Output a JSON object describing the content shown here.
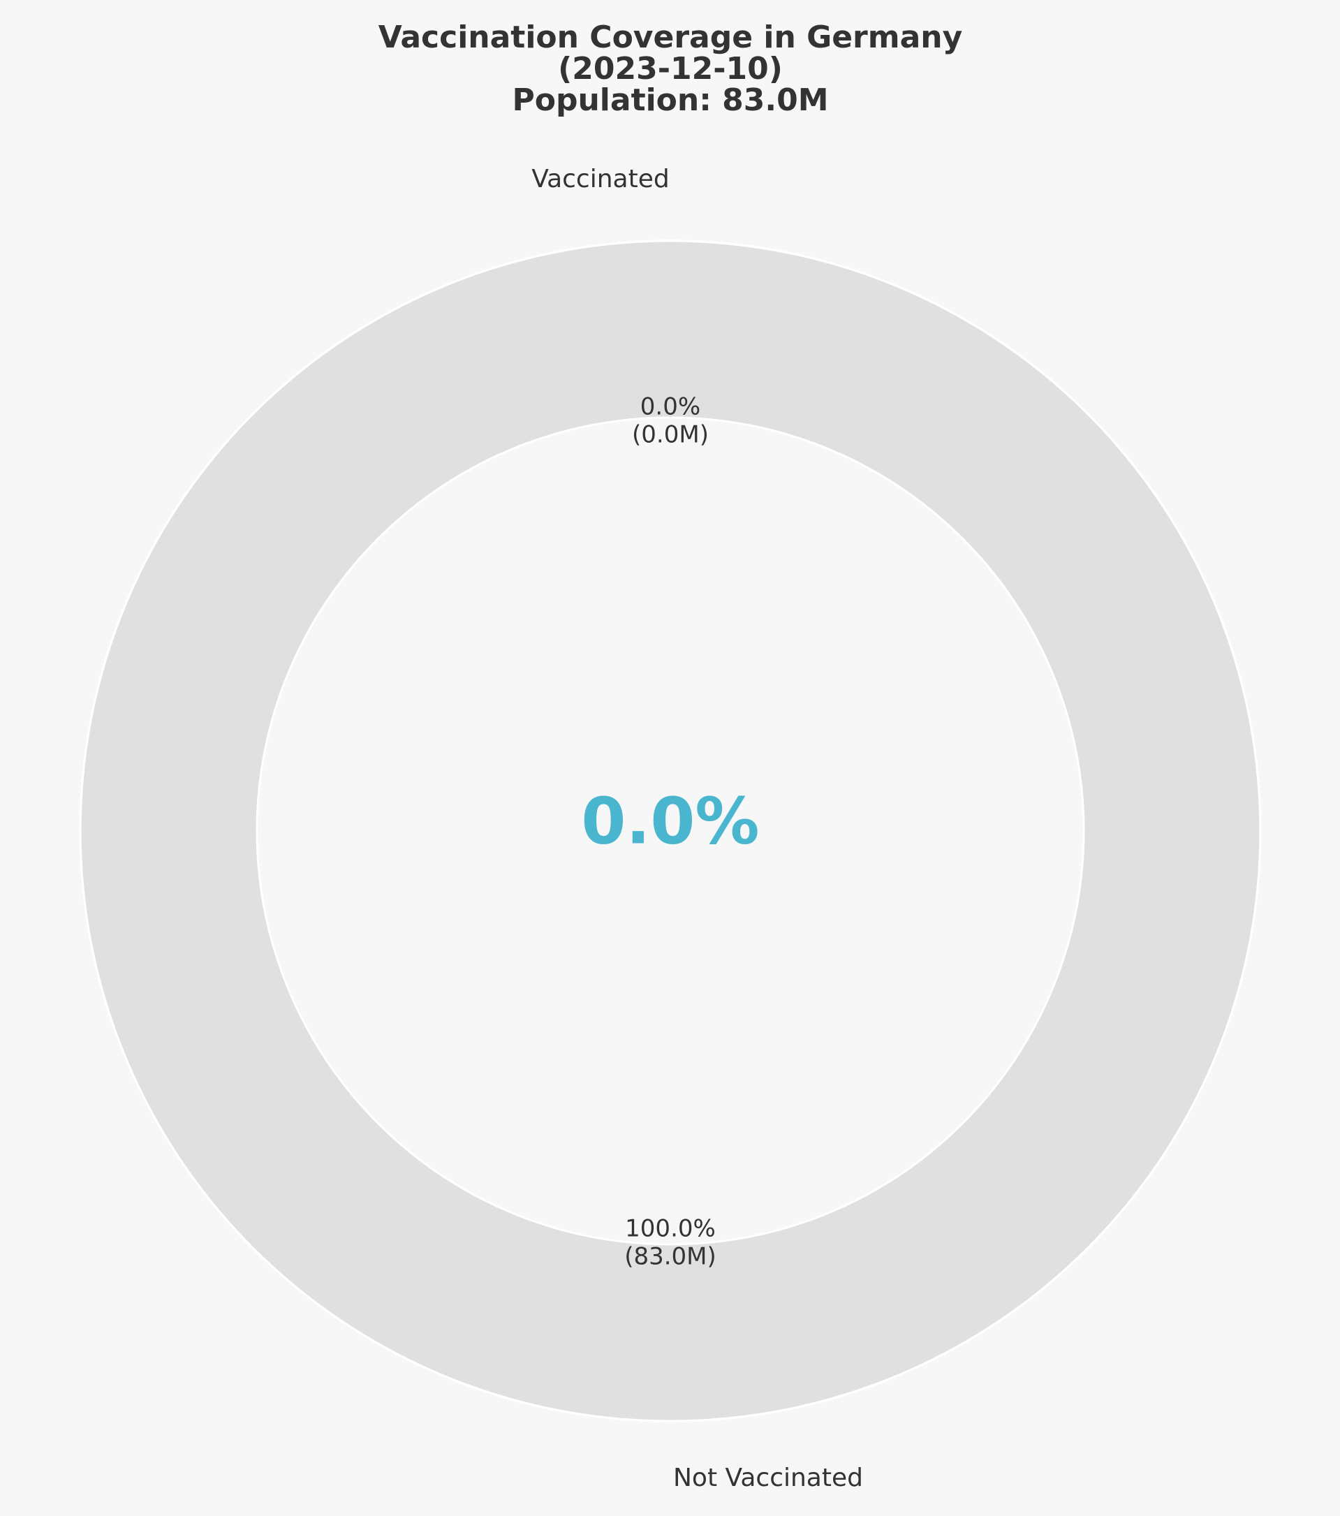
{
  "chart_data": {
    "type": "pie",
    "variant": "donut",
    "title": "Vaccination Coverage in Germany\n(2023-12-10)\nPopulation: 83.0M",
    "categories": [
      "Vaccinated",
      "Not Vaccinated"
    ],
    "values": [
      0.0,
      83.0
    ],
    "percentages": [
      0.0,
      100.0
    ],
    "data_labels": [
      "0.0%\n(0.0M)",
      "100.0%\n(83.0M)"
    ],
    "center_text": "0.0%",
    "legend": "none",
    "colors": {
      "vaccinated": "#4ab5cf",
      "not_vaccinated": "#e0e0e0",
      "edge": "#ffffff",
      "background": "#f7f7f7",
      "text": "#333333",
      "center_text": "#4ab5cf"
    }
  }
}
